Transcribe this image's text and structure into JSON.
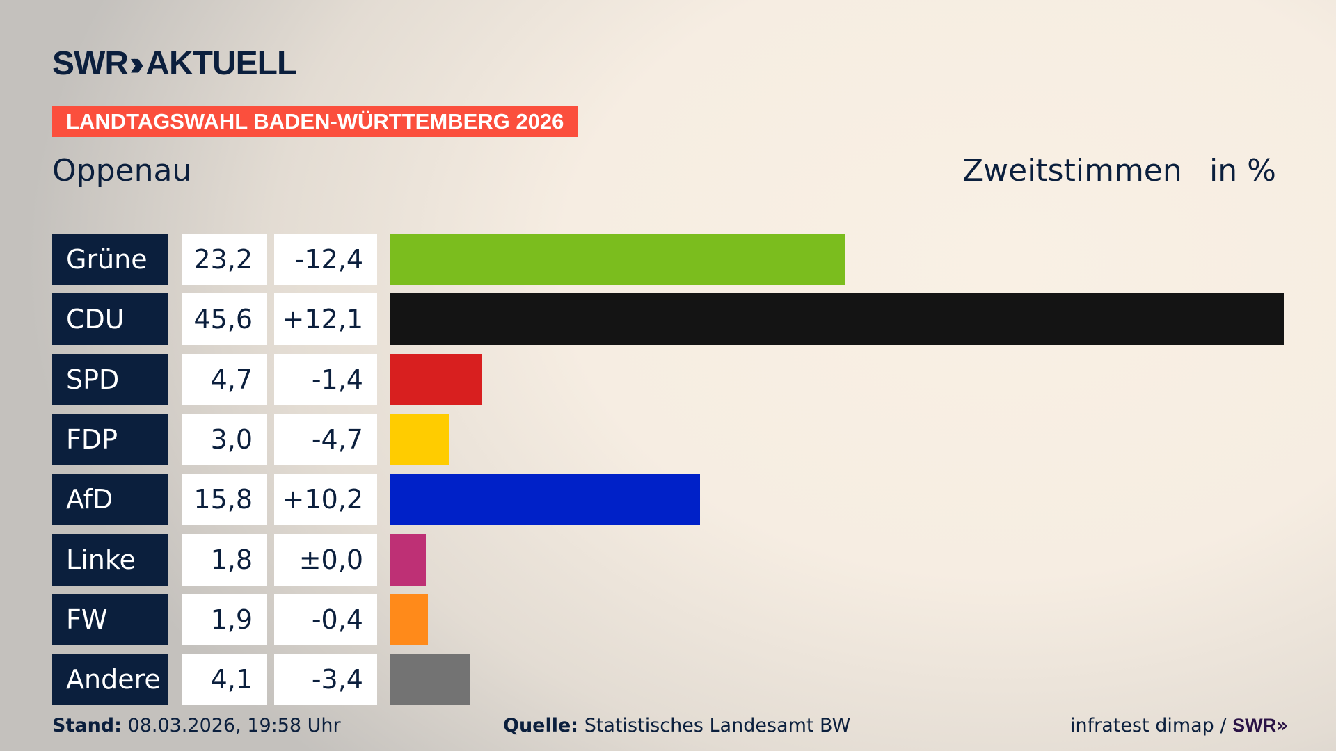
{
  "header": {
    "logo_text": "SWR",
    "logo_suffix": "AKTUELL",
    "banner": "LANDTAGSWAHL BADEN-WÜRTTEMBERG 2026",
    "region": "Oppenau",
    "vote_type": "Zweitstimmen",
    "unit": "in %"
  },
  "chart_data": {
    "type": "bar",
    "orientation": "horizontal",
    "categories": [
      "Grüne",
      "CDU",
      "SPD",
      "FDP",
      "AfD",
      "Linke",
      "FW",
      "Andere"
    ],
    "values": [
      23.2,
      45.6,
      4.7,
      3.0,
      15.8,
      1.8,
      1.9,
      4.1
    ],
    "value_labels": [
      "23,2",
      "45,6",
      "4,7",
      "3,0",
      "15,8",
      "1,8",
      "1,9",
      "4,1"
    ],
    "changes": [
      -12.4,
      12.1,
      -1.4,
      -4.7,
      10.2,
      0.0,
      -0.4,
      -3.4
    ],
    "change_labels": [
      "-12,4",
      "+12,1",
      "-1,4",
      "-4,7",
      "+10,2",
      "±0,0",
      "-0,4",
      "-3,4"
    ],
    "colors": [
      "#7bbd1e",
      "#141414",
      "#d81f1f",
      "#ffcc00",
      "#0021c8",
      "#be3075",
      "#ff8a1a",
      "#737373"
    ],
    "xlim": [
      0,
      45.6
    ],
    "grid": false
  },
  "footer": {
    "stand_label": "Stand:",
    "stand_value": "08.03.2026, 19:58 Uhr",
    "source_label": "Quelle:",
    "source_value": "Statistisches Landesamt BW",
    "credit": "infratest dimap /",
    "credit_logo": "SWR"
  }
}
